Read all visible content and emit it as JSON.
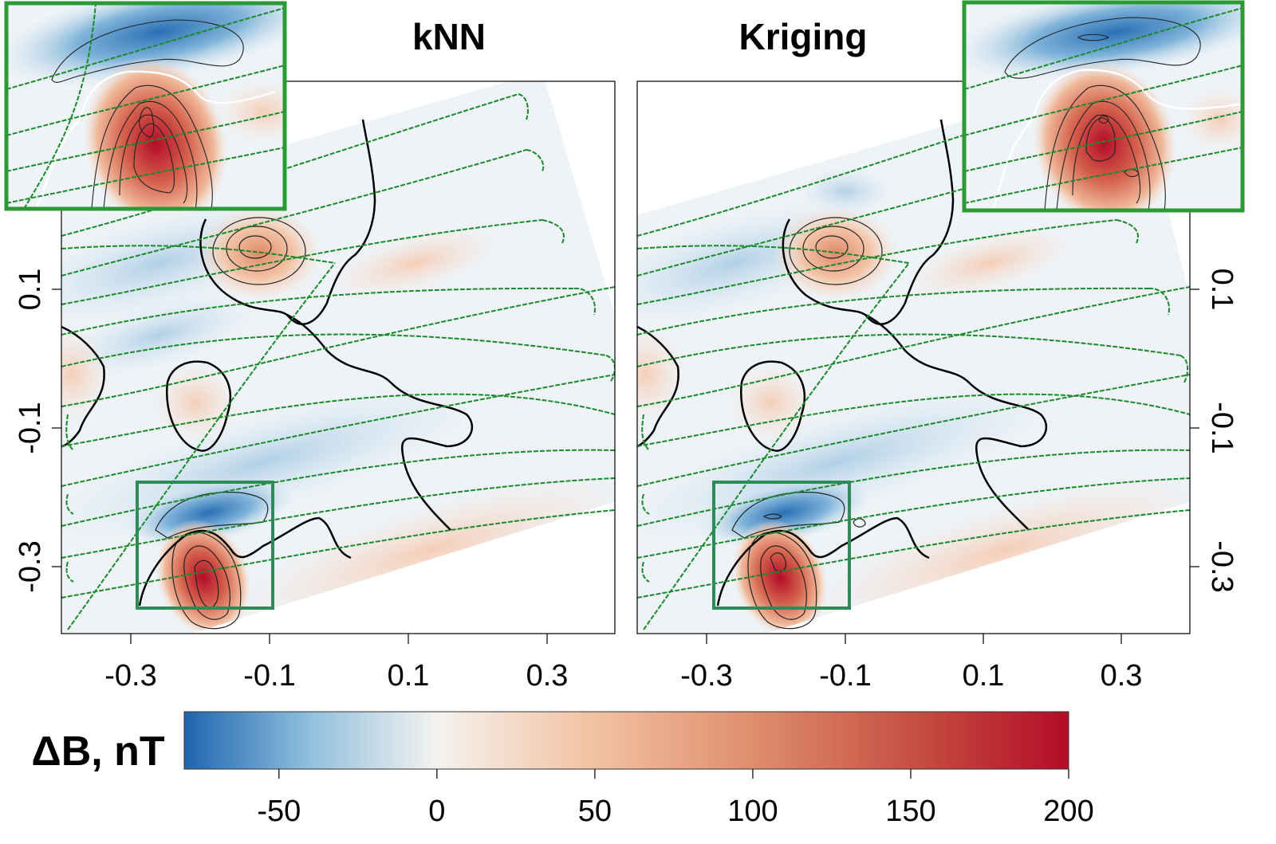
{
  "chart_data": [
    {
      "type": "heatmap",
      "title": "kNN",
      "x_ticks": [
        "-0.3",
        "-0.1",
        "0.1",
        "0.3"
      ],
      "y_ticks": [
        "0.1",
        "-0.1",
        "-0.3"
      ],
      "xlim": [
        -0.4,
        0.4
      ],
      "ylim": [
        -0.4,
        0.4
      ],
      "y_tick_side": "left",
      "inset": "top-left",
      "anomalies": [
        {
          "x": -0.12,
          "y": 0.16,
          "value": 70
        },
        {
          "x": -0.2,
          "y": -0.3,
          "value": 190
        },
        {
          "x": -0.19,
          "y": -0.22,
          "value": -70
        },
        {
          "x": -0.25,
          "y": -0.07,
          "value": 25
        }
      ]
    },
    {
      "type": "heatmap",
      "title": "Kriging",
      "x_ticks": [
        "-0.3",
        "-0.1",
        "0.1",
        "0.3"
      ],
      "y_ticks": [
        "0.1",
        "-0.1",
        "-0.3"
      ],
      "xlim": [
        -0.4,
        0.4
      ],
      "ylim": [
        -0.4,
        0.4
      ],
      "y_tick_side": "right",
      "inset": "top-right",
      "anomalies": [
        {
          "x": -0.12,
          "y": 0.16,
          "value": 65
        },
        {
          "x": -0.2,
          "y": -0.3,
          "value": 180
        },
        {
          "x": -0.19,
          "y": -0.22,
          "value": -75
        },
        {
          "x": -0.25,
          "y": -0.07,
          "value": 22
        }
      ]
    }
  ],
  "colorbar": {
    "label": "ΔB, nT",
    "min": -80,
    "max": 200,
    "ticks": [
      "-50",
      "0",
      "50",
      "100",
      "150",
      "200"
    ],
    "tick_values": [
      -50,
      0,
      50,
      100,
      150,
      200
    ],
    "colors": [
      "#1e65b0",
      "#8fbfdd",
      "#f4f2ef",
      "#f3c5a7",
      "#df8f6d",
      "#c44a3f",
      "#b30c28"
    ]
  },
  "styles": {
    "track_color": "#1a8a2a",
    "box_color": "#2e8b57",
    "inset_frame_color": "#2b9a36",
    "contour_color": "#000000"
  }
}
